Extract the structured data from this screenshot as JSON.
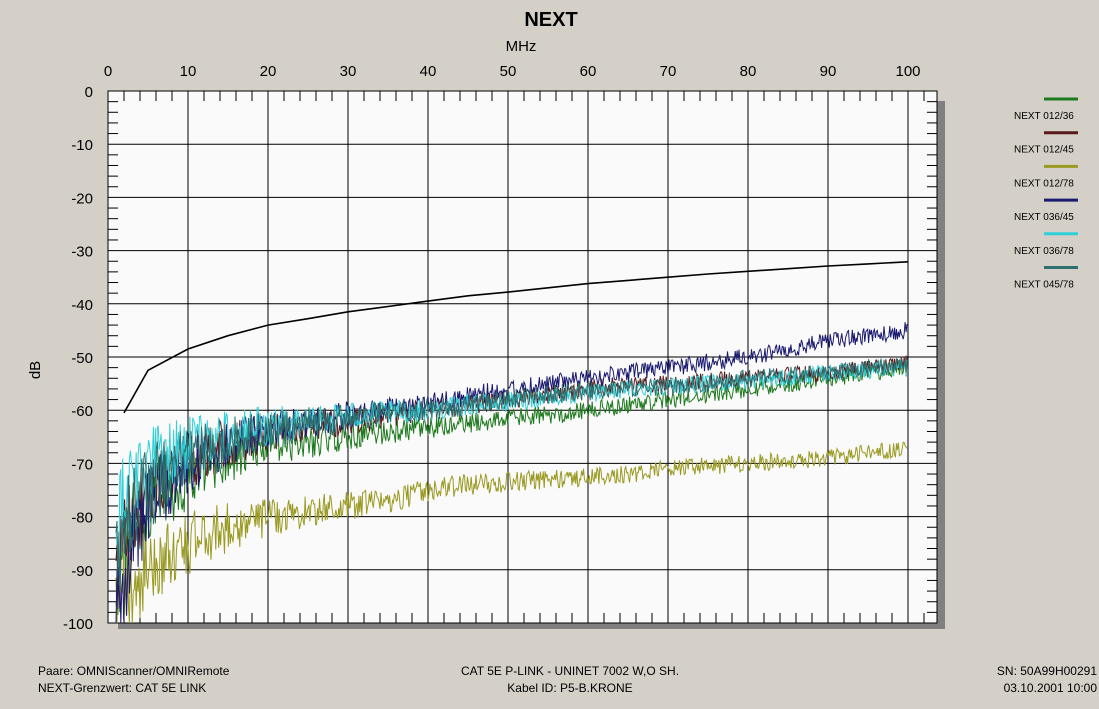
{
  "chart_data": {
    "type": "line",
    "title": "NEXT",
    "xlabel": "MHz",
    "ylabel": "dB",
    "xlim": [
      0,
      100
    ],
    "ylim": [
      -100,
      0
    ],
    "x_ticks": [
      "0",
      "10",
      "20",
      "30",
      "40",
      "50",
      "60",
      "70",
      "80",
      "90",
      "100"
    ],
    "y_ticks": [
      "0",
      "-10",
      "-20",
      "-30",
      "-40",
      "-50",
      "-60",
      "-70",
      "-80",
      "-90",
      "-100"
    ],
    "grid": true,
    "legend_position": "right",
    "limit_line": {
      "color": "#000000",
      "x": [
        2,
        5,
        10,
        15,
        20,
        25,
        30,
        35,
        40,
        45,
        50,
        55,
        60,
        65,
        70,
        75,
        80,
        85,
        90,
        95,
        100
      ],
      "y": [
        -60.5,
        -52.5,
        -48.5,
        -46,
        -44,
        -42.8,
        -41.5,
        -40.5,
        -39.5,
        -38.5,
        -37.8,
        -37,
        -36.2,
        -35.6,
        -35,
        -34.4,
        -33.9,
        -33.4,
        -32.9,
        -32.5,
        -32.1
      ]
    },
    "series": [
      {
        "name": "NEXT 012/36",
        "color": "#1f7a1f",
        "x": [
          1,
          2,
          3,
          5,
          7,
          10,
          15,
          20,
          25,
          30,
          35,
          40,
          45,
          50,
          55,
          60,
          65,
          70,
          75,
          80,
          85,
          90,
          95,
          100
        ],
        "y": [
          -92,
          -88,
          -82,
          -78,
          -75,
          -73,
          -69,
          -67,
          -66,
          -65,
          -64,
          -63.5,
          -62.5,
          -61.5,
          -61,
          -60,
          -59,
          -58,
          -57,
          -56,
          -55,
          -54,
          -53,
          -52
        ]
      },
      {
        "name": "NEXT 012/45",
        "color": "#5a1a1a",
        "x": [
          1,
          2,
          3,
          5,
          7,
          10,
          15,
          20,
          25,
          30,
          35,
          40,
          45,
          50,
          55,
          60,
          65,
          70,
          75,
          80,
          85,
          90,
          95,
          100
        ],
        "y": [
          -90,
          -86,
          -80,
          -76,
          -73,
          -70,
          -66,
          -64,
          -63,
          -62,
          -61,
          -60,
          -59,
          -58,
          -57,
          -56,
          -55,
          -55,
          -54.5,
          -54,
          -53.5,
          -53,
          -52,
          -51
        ]
      },
      {
        "name": "NEXT 012/78",
        "color": "#9a9a22",
        "x": [
          1,
          2,
          3,
          5,
          7,
          10,
          15,
          20,
          25,
          30,
          35,
          40,
          45,
          50,
          55,
          60,
          65,
          70,
          75,
          80,
          85,
          90,
          95,
          100
        ],
        "y": [
          -99,
          -95,
          -93,
          -90,
          -88,
          -85,
          -82,
          -80,
          -79,
          -78,
          -77,
          -75,
          -74,
          -73.5,
          -73,
          -72.5,
          -72,
          -71,
          -70.5,
          -70,
          -69.5,
          -69,
          -68,
          -67.5
        ]
      },
      {
        "name": "NEXT 036/45",
        "color": "#1a1a70",
        "x": [
          1,
          2,
          3,
          5,
          7,
          10,
          15,
          20,
          25,
          30,
          35,
          40,
          45,
          50,
          55,
          60,
          65,
          70,
          75,
          80,
          85,
          90,
          95,
          100
        ],
        "y": [
          -96,
          -92,
          -85,
          -78,
          -74,
          -70,
          -66,
          -64,
          -62,
          -61,
          -60,
          -59,
          -57.5,
          -56,
          -55,
          -54,
          -53,
          -52,
          -51,
          -50,
          -48.5,
          -47,
          -46,
          -45
        ]
      },
      {
        "name": "NEXT 036/78",
        "color": "#30d0d8",
        "x": [
          1,
          2,
          3,
          5,
          7,
          10,
          15,
          20,
          25,
          30,
          35,
          40,
          45,
          50,
          55,
          60,
          65,
          70,
          75,
          80,
          85,
          90,
          95,
          100
        ],
        "y": [
          -82,
          -76,
          -72,
          -70,
          -68,
          -67,
          -64.5,
          -63,
          -62,
          -61,
          -60.5,
          -60,
          -59,
          -58.5,
          -57.5,
          -57,
          -56,
          -55.5,
          -55,
          -54.5,
          -54,
          -53,
          -52.5,
          -52
        ]
      },
      {
        "name": "NEXT 045/78",
        "color": "#2e7070",
        "x": [
          1,
          2,
          3,
          5,
          7,
          10,
          15,
          20,
          25,
          30,
          35,
          40,
          45,
          50,
          55,
          60,
          65,
          70,
          75,
          80,
          85,
          90,
          95,
          100
        ],
        "y": [
          -88,
          -84,
          -78,
          -75,
          -72,
          -69,
          -66,
          -64,
          -62.5,
          -61.5,
          -60.5,
          -60,
          -59,
          -58,
          -57,
          -56.5,
          -56,
          -55.5,
          -55,
          -54,
          -53.5,
          -53,
          -52,
          -51.5
        ]
      }
    ]
  },
  "footer": {
    "left_line1": "Paare: OMNIScanner/OMNIRemote",
    "left_line2": "NEXT-Grenzwert: CAT 5E LINK",
    "center_line1": "CAT 5E P-LINK  -  UNINET 7002 W,O SH.",
    "center_line2": "Kabel ID: P5-B.KRONE",
    "right_line1": "SN: 50A99H00291",
    "right_line2": "03.10.2001  10:00"
  }
}
